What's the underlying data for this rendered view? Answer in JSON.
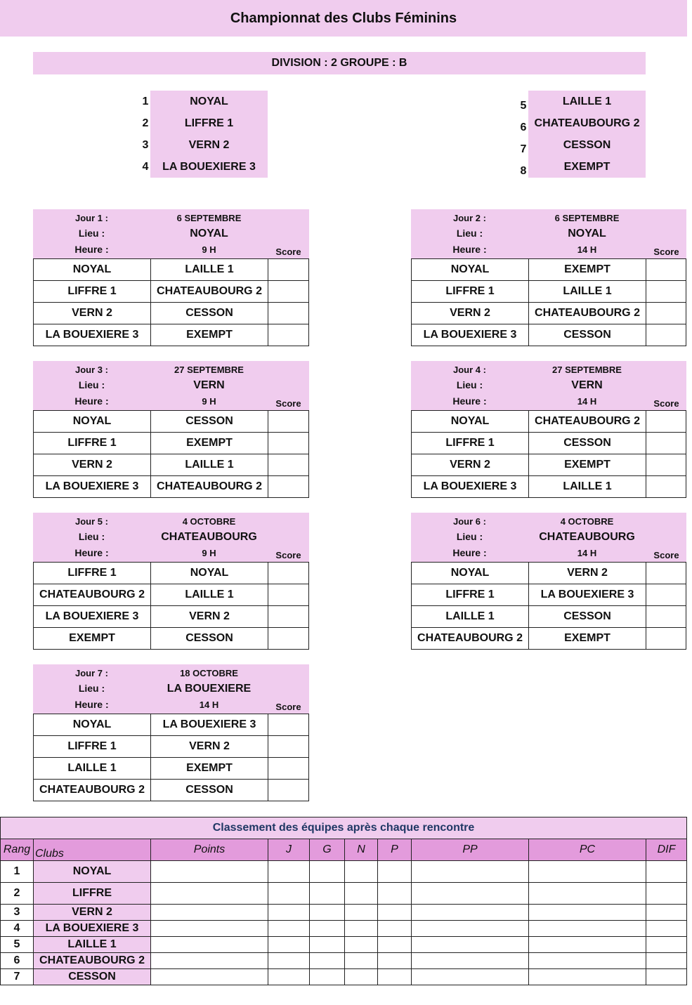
{
  "title": "Championnat des Clubs Féminins",
  "division": "DIVISION : 2 GROUPE : B",
  "teams": [
    {
      "n": "1",
      "name": "NOYAL"
    },
    {
      "n": "2",
      "name": "LIFFRE 1"
    },
    {
      "n": "3",
      "name": "VERN 2"
    },
    {
      "n": "4",
      "name": "LA BOUEXIERE 3"
    },
    {
      "n": "5",
      "name": "LAILLE 1"
    },
    {
      "n": "6",
      "name": "CHATEAUBOURG 2"
    },
    {
      "n": "7",
      "name": "CESSON"
    },
    {
      "n": "8",
      "name": "EXEMPT"
    }
  ],
  "labels": {
    "lieu": "Lieu :",
    "heure": "Heure :",
    "score": "Score"
  },
  "days": [
    {
      "jour": "Jour 1 :",
      "date": "6 SEPTEMBRE",
      "lieu": "NOYAL",
      "heure": "9 H",
      "matches": [
        [
          "NOYAL",
          "LAILLE 1"
        ],
        [
          "LIFFRE 1",
          "CHATEAUBOURG 2"
        ],
        [
          "VERN 2",
          "CESSON"
        ],
        [
          "LA BOUEXIERE 3",
          "EXEMPT"
        ]
      ]
    },
    {
      "jour": "Jour 2 :",
      "date": "6 SEPTEMBRE",
      "lieu": "NOYAL",
      "heure": "14 H",
      "matches": [
        [
          "NOYAL",
          "EXEMPT"
        ],
        [
          "LIFFRE 1",
          "LAILLE 1"
        ],
        [
          "VERN 2",
          "CHATEAUBOURG 2"
        ],
        [
          "LA BOUEXIERE 3",
          "CESSON"
        ]
      ]
    },
    {
      "jour": "Jour 3 :",
      "date": "27 SEPTEMBRE",
      "lieu": "VERN",
      "heure": "9 H",
      "matches": [
        [
          "NOYAL",
          "CESSON"
        ],
        [
          "LIFFRE 1",
          "EXEMPT"
        ],
        [
          "VERN 2",
          "LAILLE 1"
        ],
        [
          "LA BOUEXIERE 3",
          "CHATEAUBOURG 2"
        ]
      ]
    },
    {
      "jour": "Jour 4 :",
      "date": "27 SEPTEMBRE",
      "lieu": "VERN",
      "heure": "14 H",
      "matches": [
        [
          "NOYAL",
          "CHATEAUBOURG 2"
        ],
        [
          "LIFFRE 1",
          "CESSON"
        ],
        [
          "VERN 2",
          "EXEMPT"
        ],
        [
          "LA BOUEXIERE 3",
          "LAILLE 1"
        ]
      ]
    },
    {
      "jour": "Jour 5 :",
      "date": "4 OCTOBRE",
      "lieu": "CHATEAUBOURG",
      "heure": "9 H",
      "matches": [
        [
          "LIFFRE 1",
          "NOYAL"
        ],
        [
          "CHATEAUBOURG 2",
          "LAILLE 1"
        ],
        [
          "LA BOUEXIERE 3",
          "VERN 2"
        ],
        [
          "EXEMPT",
          "CESSON"
        ]
      ]
    },
    {
      "jour": "Jour 6 :",
      "date": "4 OCTOBRE",
      "lieu": "CHATEAUBOURG",
      "heure": "14 H",
      "matches": [
        [
          "NOYAL",
          "VERN 2"
        ],
        [
          "LIFFRE 1",
          "LA BOUEXIERE 3"
        ],
        [
          "LAILLE 1",
          "CESSON"
        ],
        [
          "CHATEAUBOURG 2",
          "EXEMPT"
        ]
      ]
    },
    {
      "jour": "Jour 7 :",
      "date": "18 OCTOBRE",
      "lieu": "LA BOUEXIERE",
      "heure": "14 H",
      "matches": [
        [
          "NOYAL",
          "LA BOUEXIERE 3"
        ],
        [
          "LIFFRE 1",
          "VERN 2"
        ],
        [
          "LAILLE 1",
          "EXEMPT"
        ],
        [
          "CHATEAUBOURG 2",
          "CESSON"
        ]
      ]
    }
  ],
  "standings": {
    "title": "Classement des équipes après chaque rencontre",
    "title_color": "#1f3864",
    "headers": [
      "Rang",
      "Clubs",
      "Points",
      "J",
      "G",
      "N",
      "P",
      "PP",
      "PC",
      "DIF"
    ],
    "rows": [
      [
        "1",
        "NOYAL"
      ],
      [
        "2",
        "LIFFRE"
      ],
      [
        "3",
        "VERN 2"
      ],
      [
        "4",
        "LA BOUEXIERE 3"
      ],
      [
        "5",
        "LAILLE 1"
      ],
      [
        "6",
        "CHATEAUBOURG 2"
      ],
      [
        "7",
        "CESSON"
      ]
    ]
  },
  "colors": {
    "light_pink": "#f0ccee",
    "header_pink": "#e39bdc"
  }
}
